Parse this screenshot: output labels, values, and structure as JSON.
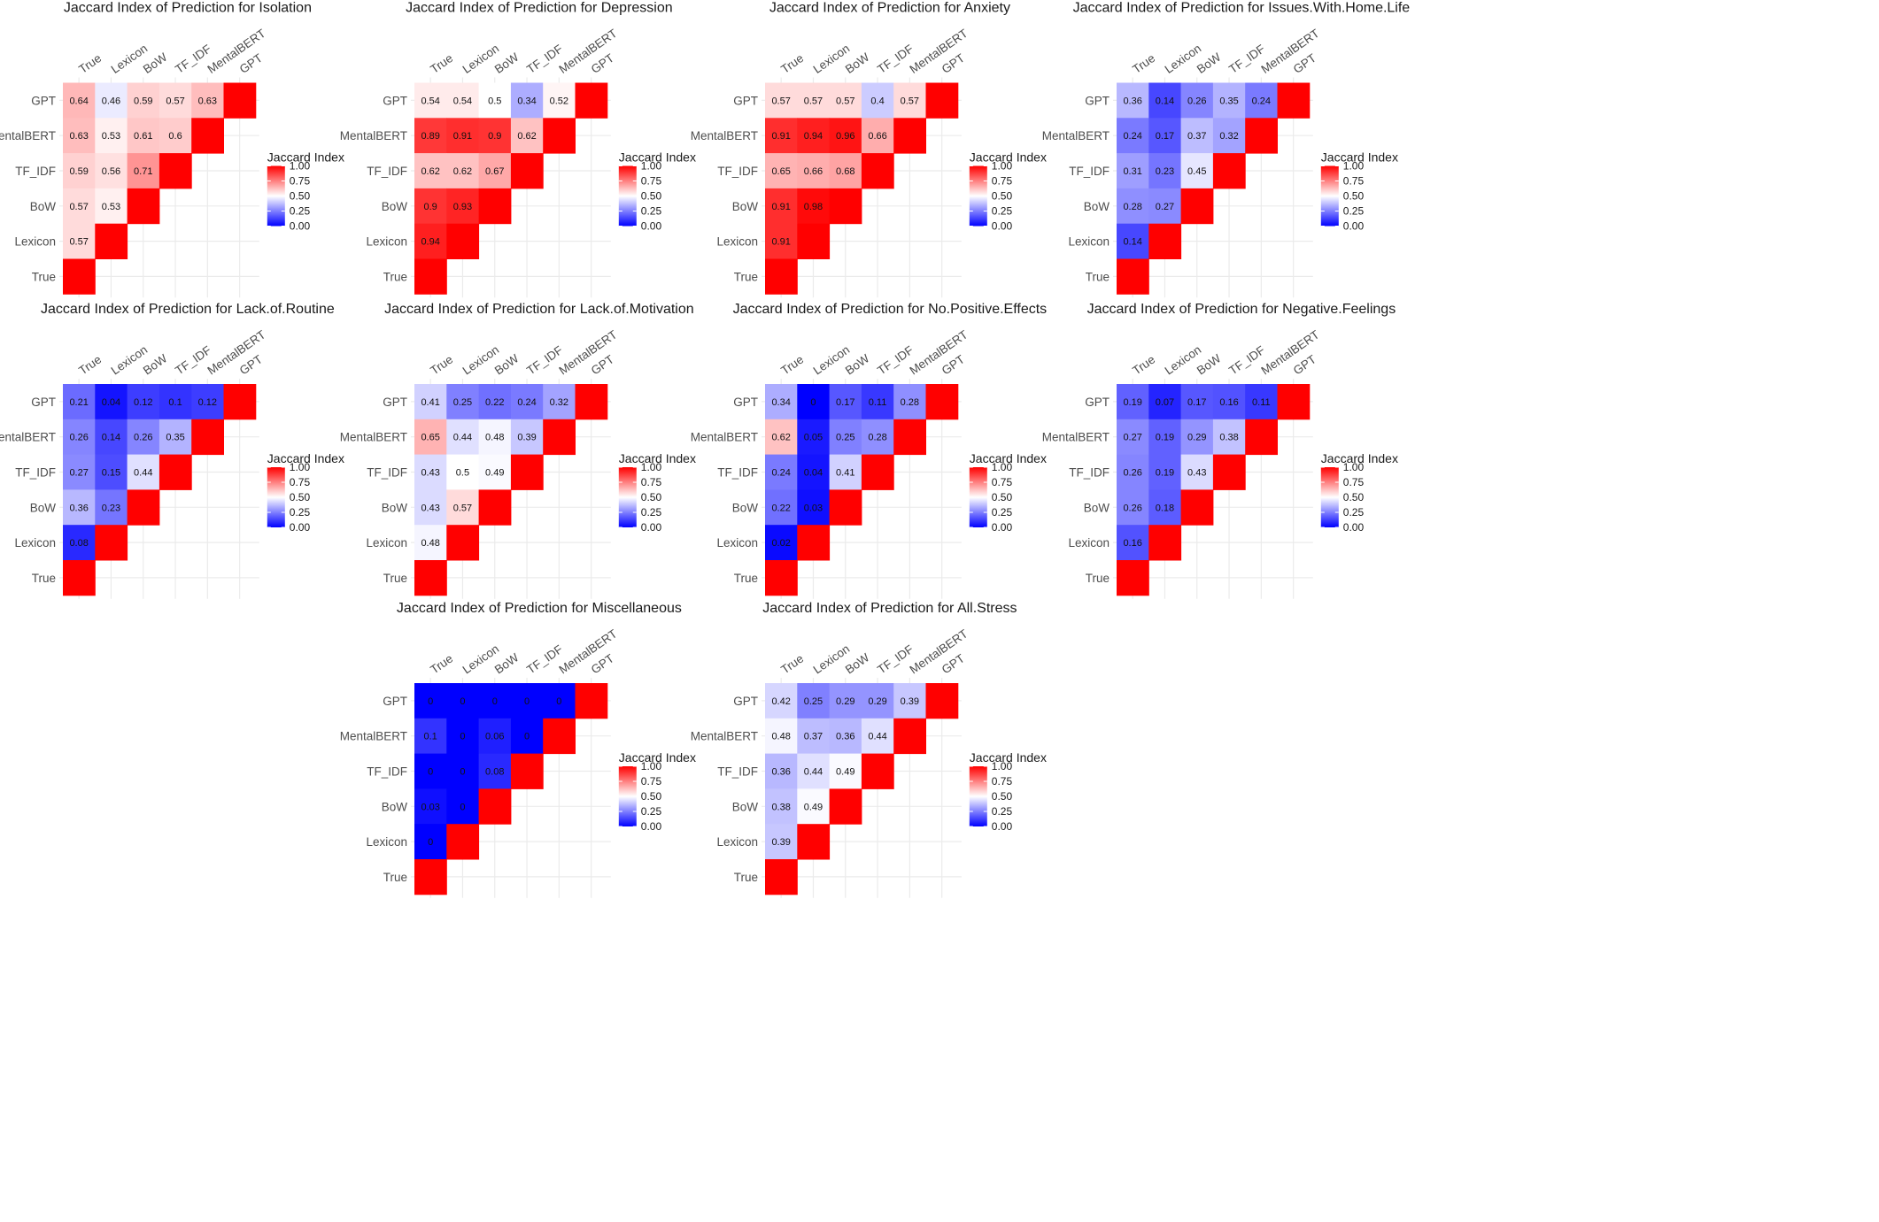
{
  "colors": {
    "low": "#0000ff",
    "mid": "#ffffff",
    "high": "#ff0000",
    "grid": "#ebebeb"
  },
  "legend": {
    "title": "Jaccard Index",
    "ticks": [
      "1.00",
      "0.75",
      "0.50",
      "0.25",
      "0.00"
    ]
  },
  "chart_data": [
    {
      "type": "heatmap",
      "title": "Jaccard Index of Prediction for Isolation",
      "x_labels": [
        "True",
        "Lexicon",
        "BoW",
        "TF_IDF",
        "MentalBERT",
        "GPT"
      ],
      "y_labels": [
        "GPT",
        "MentalBERT",
        "TF_IDF",
        "BoW",
        "Lexicon",
        "True"
      ],
      "values": [
        [
          0.64,
          0.46,
          0.59,
          0.57,
          0.63
        ],
        [
          0.63,
          0.53,
          0.61,
          0.6
        ],
        [
          0.59,
          0.56,
          0.71
        ],
        [
          0.57,
          0.53
        ],
        [
          0.57
        ]
      ],
      "fill_limits": [
        0,
        1
      ]
    },
    {
      "type": "heatmap",
      "title": "Jaccard Index of Prediction for Depression",
      "x_labels": [
        "True",
        "Lexicon",
        "BoW",
        "TF_IDF",
        "MentalBERT",
        "GPT"
      ],
      "y_labels": [
        "GPT",
        "MentalBERT",
        "TF_IDF",
        "BoW",
        "Lexicon",
        "True"
      ],
      "values": [
        [
          0.54,
          0.54,
          0.5,
          0.34,
          0.52
        ],
        [
          0.89,
          0.91,
          0.9,
          0.62
        ],
        [
          0.62,
          0.62,
          0.67
        ],
        [
          0.9,
          0.93
        ],
        [
          0.94
        ]
      ],
      "fill_limits": [
        0,
        1
      ]
    },
    {
      "type": "heatmap",
      "title": "Jaccard Index of Prediction for Anxiety",
      "x_labels": [
        "True",
        "Lexicon",
        "BoW",
        "TF_IDF",
        "MentalBERT",
        "GPT"
      ],
      "y_labels": [
        "GPT",
        "MentalBERT",
        "TF_IDF",
        "BoW",
        "Lexicon",
        "True"
      ],
      "values": [
        [
          0.57,
          0.57,
          0.57,
          0.4,
          0.57
        ],
        [
          0.91,
          0.94,
          0.96,
          0.66
        ],
        [
          0.65,
          0.66,
          0.68
        ],
        [
          0.91,
          0.98
        ],
        [
          0.91
        ]
      ],
      "fill_limits": [
        0,
        1
      ]
    },
    {
      "type": "heatmap",
      "title": "Jaccard Index of Prediction for Issues.With.Home.Life",
      "x_labels": [
        "True",
        "Lexicon",
        "BoW",
        "TF_IDF",
        "MentalBERT",
        "GPT"
      ],
      "y_labels": [
        "GPT",
        "MentalBERT",
        "TF_IDF",
        "BoW",
        "Lexicon",
        "True"
      ],
      "values": [
        [
          0.36,
          0.14,
          0.26,
          0.35,
          0.24
        ],
        [
          0.24,
          0.17,
          0.37,
          0.32
        ],
        [
          0.31,
          0.23,
          0.45
        ],
        [
          0.28,
          0.27
        ],
        [
          0.14
        ]
      ],
      "fill_limits": [
        0,
        1
      ]
    },
    {
      "type": "heatmap",
      "title": "Jaccard Index of Prediction for Lack.of.Routine",
      "x_labels": [
        "True",
        "Lexicon",
        "BoW",
        "TF_IDF",
        "MentalBERT",
        "GPT"
      ],
      "y_labels": [
        "GPT",
        "MentalBERT",
        "TF_IDF",
        "BoW",
        "Lexicon",
        "True"
      ],
      "values": [
        [
          0.21,
          0.04,
          0.12,
          0.1,
          0.12
        ],
        [
          0.26,
          0.14,
          0.26,
          0.35
        ],
        [
          0.27,
          0.15,
          0.44
        ],
        [
          0.36,
          0.23
        ],
        [
          0.08
        ]
      ],
      "fill_limits": [
        0,
        1
      ]
    },
    {
      "type": "heatmap",
      "title": "Jaccard Index of Prediction for Lack.of.Motivation",
      "x_labels": [
        "True",
        "Lexicon",
        "BoW",
        "TF_IDF",
        "MentalBERT",
        "GPT"
      ],
      "y_labels": [
        "GPT",
        "MentalBERT",
        "TF_IDF",
        "BoW",
        "Lexicon",
        "True"
      ],
      "values": [
        [
          0.41,
          0.25,
          0.22,
          0.24,
          0.32
        ],
        [
          0.65,
          0.44,
          0.48,
          0.39
        ],
        [
          0.43,
          0.5,
          0.49
        ],
        [
          0.43,
          0.57
        ],
        [
          0.48
        ]
      ],
      "fill_limits": [
        0,
        1
      ]
    },
    {
      "type": "heatmap",
      "title": "Jaccard Index of Prediction for No.Positive.Effects",
      "x_labels": [
        "True",
        "Lexicon",
        "BoW",
        "TF_IDF",
        "MentalBERT",
        "GPT"
      ],
      "y_labels": [
        "GPT",
        "MentalBERT",
        "TF_IDF",
        "BoW",
        "Lexicon",
        "True"
      ],
      "values": [
        [
          0.34,
          0,
          0.17,
          0.11,
          0.28
        ],
        [
          0.62,
          0.05,
          0.25,
          0.28
        ],
        [
          0.24,
          0.04,
          0.41
        ],
        [
          0.22,
          0.03
        ],
        [
          0.02
        ]
      ],
      "fill_limits": [
        0,
        1
      ]
    },
    {
      "type": "heatmap",
      "title": "Jaccard Index of Prediction for Negative.Feelings",
      "x_labels": [
        "True",
        "Lexicon",
        "BoW",
        "TF_IDF",
        "MentalBERT",
        "GPT"
      ],
      "y_labels": [
        "GPT",
        "MentalBERT",
        "TF_IDF",
        "BoW",
        "Lexicon",
        "True"
      ],
      "values": [
        [
          0.19,
          0.07,
          0.17,
          0.16,
          0.11
        ],
        [
          0.27,
          0.19,
          0.29,
          0.38
        ],
        [
          0.26,
          0.19,
          0.43
        ],
        [
          0.26,
          0.18
        ],
        [
          0.16
        ]
      ],
      "fill_limits": [
        0,
        1
      ]
    },
    {
      "type": "heatmap",
      "title": "Jaccard Index of Prediction for Miscellaneous",
      "x_labels": [
        "True",
        "Lexicon",
        "BoW",
        "TF_IDF",
        "MentalBERT",
        "GPT"
      ],
      "y_labels": [
        "GPT",
        "MentalBERT",
        "TF_IDF",
        "BoW",
        "Lexicon",
        "True"
      ],
      "values": [
        [
          0,
          0,
          0,
          0,
          0
        ],
        [
          0.1,
          0,
          0.06,
          0
        ],
        [
          0,
          0,
          0.08
        ],
        [
          0.03,
          0
        ],
        [
          0
        ]
      ],
      "fill_limits": [
        0,
        1
      ]
    },
    {
      "type": "heatmap",
      "title": "Jaccard Index of Prediction for All.Stress",
      "x_labels": [
        "True",
        "Lexicon",
        "BoW",
        "TF_IDF",
        "MentalBERT",
        "GPT"
      ],
      "y_labels": [
        "GPT",
        "MentalBERT",
        "TF_IDF",
        "BoW",
        "Lexicon",
        "True"
      ],
      "values": [
        [
          0.42,
          0.25,
          0.29,
          0.29,
          0.39
        ],
        [
          0.48,
          0.37,
          0.36,
          0.44
        ],
        [
          0.36,
          0.44,
          0.49
        ],
        [
          0.38,
          0.49
        ],
        [
          0.39
        ]
      ],
      "fill_limits": [
        0,
        1
      ]
    }
  ]
}
